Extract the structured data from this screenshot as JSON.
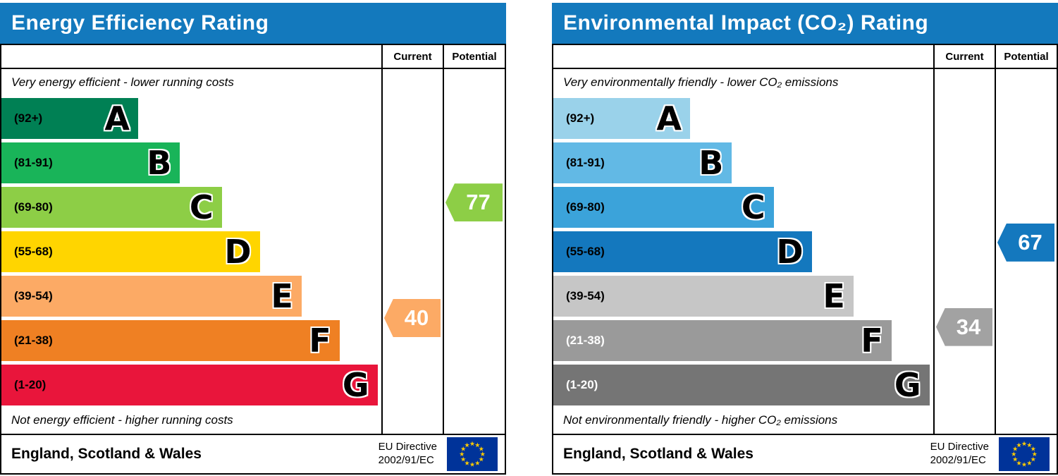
{
  "chart_data": [
    {
      "type": "epc-rating-bar",
      "title": "Energy Efficiency Rating",
      "title_bg": "#1379bd",
      "columns": {
        "current": "Current",
        "potential": "Potential"
      },
      "top_note": "Very energy efficient - lower running costs",
      "bottom_note": "Not energy efficient - higher running costs",
      "legend_position": "top-right",
      "bands": [
        {
          "letter": "A",
          "range": "(92+)",
          "color": "#008054",
          "text_color": "#000000",
          "width_pct": 36
        },
        {
          "letter": "B",
          "range": "(81-91)",
          "color": "#19b459",
          "text_color": "#000000",
          "width_pct": 47
        },
        {
          "letter": "C",
          "range": "(69-80)",
          "color": "#8dce46",
          "text_color": "#000000",
          "width_pct": 58
        },
        {
          "letter": "D",
          "range": "(55-68)",
          "color": "#ffd500",
          "text_color": "#000000",
          "width_pct": 68
        },
        {
          "letter": "E",
          "range": "(39-54)",
          "color": "#fcaa65",
          "text_color": "#000000",
          "width_pct": 79
        },
        {
          "letter": "F",
          "range": "(21-38)",
          "color": "#ef8023",
          "text_color": "#000000",
          "width_pct": 89
        },
        {
          "letter": "G",
          "range": "(1-20)",
          "color": "#e9153b",
          "text_color": "#000000",
          "width_pct": 99
        }
      ],
      "current": {
        "value": "40",
        "band": "E",
        "color": "#fcaa65",
        "row_center": 5.0
      },
      "potential": {
        "value": "77",
        "band": "C",
        "color": "#8dce46",
        "row_center": 2.4
      },
      "footer": {
        "region": "England, Scotland & Wales",
        "directive_line1": "EU Directive",
        "directive_line2": "2002/91/EC"
      }
    },
    {
      "type": "epc-rating-bar",
      "title": "Environmental Impact (CO₂) Rating",
      "title_bg": "#1379bd",
      "columns": {
        "current": "Current",
        "potential": "Potential"
      },
      "top_note": "Very environmentally friendly - lower CO₂ emissions",
      "bottom_note": "Not environmentally friendly - higher CO₂ emissions",
      "legend_position": "top-right",
      "bands": [
        {
          "letter": "A",
          "range": "(92+)",
          "color": "#9ad2ea",
          "text_color": "#000000",
          "width_pct": 36
        },
        {
          "letter": "B",
          "range": "(81-91)",
          "color": "#62b9e5",
          "text_color": "#000000",
          "width_pct": 47
        },
        {
          "letter": "C",
          "range": "(69-80)",
          "color": "#3ba3da",
          "text_color": "#000000",
          "width_pct": 58
        },
        {
          "letter": "D",
          "range": "(55-68)",
          "color": "#1478be",
          "text_color": "#000000",
          "width_pct": 68
        },
        {
          "letter": "E",
          "range": "(39-54)",
          "color": "#c6c6c6",
          "text_color": "#000000",
          "width_pct": 79
        },
        {
          "letter": "F",
          "range": "(21-38)",
          "color": "#9a9a9a",
          "text_color": "#ffffff",
          "width_pct": 89
        },
        {
          "letter": "G",
          "range": "(1-20)",
          "color": "#757575",
          "text_color": "#ffffff",
          "width_pct": 99
        }
      ],
      "current": {
        "value": "34",
        "band": "F",
        "color": "#a2a2a2",
        "row_center": 5.2
      },
      "potential": {
        "value": "67",
        "band": "D",
        "color": "#1478be",
        "row_center": 3.3
      },
      "footer": {
        "region": "England, Scotland & Wales",
        "directive_line1": "EU Directive",
        "directive_line2": "2002/91/EC"
      }
    }
  ],
  "eu_flag": {
    "background": "#003399",
    "stars": "#ffcc00"
  }
}
